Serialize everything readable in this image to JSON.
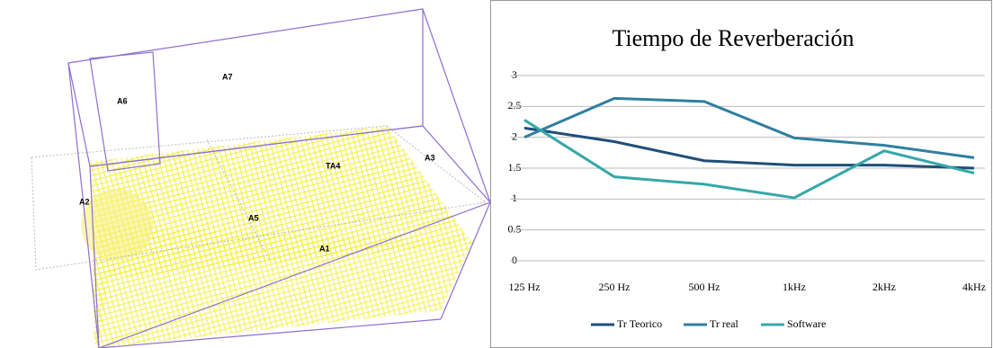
{
  "room_labels": [
    "A6",
    "A7",
    "A3",
    "TA4",
    "A2",
    "A5",
    "A1"
  ],
  "chart_data": {
    "type": "line",
    "title": "Tiempo de Reverberación",
    "categories": [
      "125 Hz",
      "250 Hz",
      "500 Hz",
      "1kHz",
      "2kHz",
      "4kHz"
    ],
    "series": [
      {
        "name": "Tr Teorico",
        "color": "#1f4e79",
        "values": [
          2.15,
          1.93,
          1.62,
          1.55,
          1.55,
          1.5
        ]
      },
      {
        "name": "Tr real",
        "color": "#2e7fa0",
        "values": [
          2.0,
          2.63,
          2.58,
          1.99,
          1.87,
          1.67
        ]
      },
      {
        "name": "Software",
        "color": "#35a8a8",
        "values": [
          2.28,
          1.36,
          1.24,
          1.02,
          1.78,
          1.42
        ]
      }
    ],
    "ylim": [
      0,
      3
    ],
    "yticks": [
      0,
      0.5,
      1,
      1.5,
      2,
      2.5,
      3
    ],
    "grid": true,
    "legend": "bottom"
  }
}
